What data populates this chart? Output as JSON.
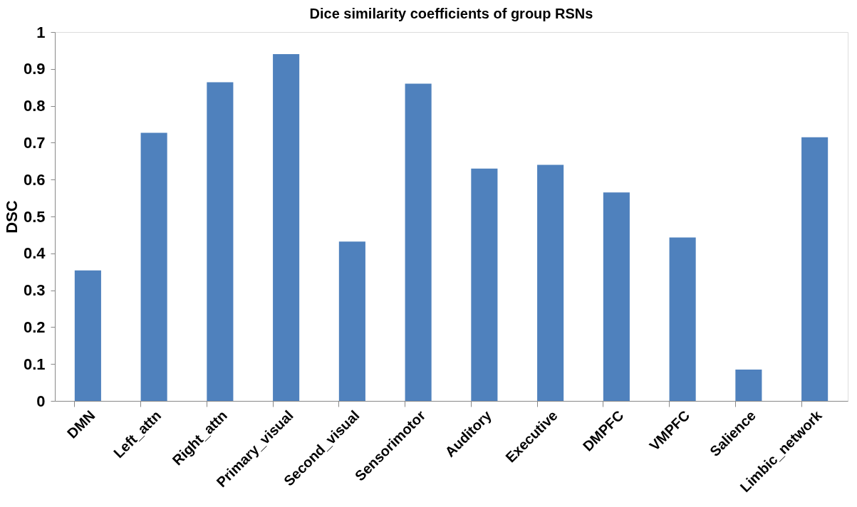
{
  "chart_data": {
    "type": "bar",
    "title": "Dice similarity coefficients of group RSNs",
    "ylabel": "DSC",
    "categories": [
      "DMN",
      "Left_attn",
      "Right_attn",
      "Primary_visual",
      "Second_visual",
      "Sensorimotor",
      "Auditory",
      "Executive",
      "DMPFC",
      "VMPFC",
      "Salience",
      "Limbic_network"
    ],
    "values": [
      0.354,
      0.727,
      0.864,
      0.94,
      0.432,
      0.86,
      0.63,
      0.64,
      0.565,
      0.443,
      0.085,
      0.715
    ],
    "color": "#4f81bd",
    "ylim": [
      0,
      1
    ],
    "yticks": [
      0,
      0.1,
      0.2,
      0.3,
      0.4,
      0.5,
      0.6,
      0.7,
      0.8,
      0.9,
      1
    ],
    "grid": false
  }
}
